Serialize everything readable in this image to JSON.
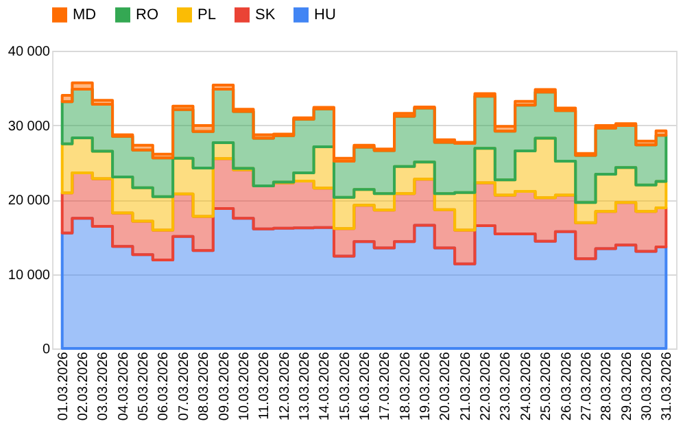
{
  "chart_data": {
    "type": "area",
    "stacked": true,
    "legend": "top",
    "grid": "y",
    "categories": [
      "01.03.2026",
      "02.03.2026",
      "03.03.2026",
      "04.03.2026",
      "05.03.2026",
      "06.03.2026",
      "07.03.2026",
      "08.03.2026",
      "09.03.2026",
      "10.03.2026",
      "11.03.2026",
      "12.03.2026",
      "13.03.2026",
      "14.03.2026",
      "15.03.2026",
      "16.03.2026",
      "17.03.2026",
      "18.03.2026",
      "19.03.2026",
      "20.03.2026",
      "21.03.2026",
      "22.03.2026",
      "23.03.2026",
      "24.03.2026",
      "25.03.2026",
      "26.03.2026",
      "27.03.2026",
      "28.03.2026",
      "29.03.2026",
      "30.03.2026",
      "31.03.2026"
    ],
    "ylim": [
      0,
      40000
    ],
    "yticks": [
      {
        "value": 0,
        "label": "0"
      },
      {
        "value": 10000,
        "label": "10 000"
      },
      {
        "value": 20000,
        "label": "20 000"
      },
      {
        "value": 30000,
        "label": "30 000"
      },
      {
        "value": 40000,
        "label": "40 000"
      }
    ],
    "series": [
      {
        "name": "HU",
        "color": "#4285f4",
        "values": [
          15500,
          17500,
          16400,
          13700,
          12600,
          11900,
          15050,
          13150,
          18800,
          17500,
          16050,
          16150,
          16200,
          16250,
          12400,
          14350,
          13500,
          14350,
          16550,
          13500,
          11350,
          16500,
          15400,
          15400,
          14400,
          15700,
          12050,
          13400,
          13900,
          13050,
          13650
        ]
      },
      {
        "name": "SK",
        "color": "#ea4335",
        "values": [
          5400,
          6100,
          6400,
          4500,
          4500,
          4000,
          5700,
          4600,
          6700,
          6500,
          5800,
          6100,
          6300,
          5300,
          3700,
          4900,
          5100,
          6450,
          6200,
          5150,
          4550,
          5750,
          5200,
          5700,
          5850,
          4900,
          4850,
          5000,
          5700,
          5350,
          5250
        ]
      },
      {
        "name": "PL",
        "color": "#fbbc04",
        "values": [
          6600,
          4700,
          3700,
          4850,
          4500,
          4500,
          4800,
          6500,
          2150,
          200,
          0,
          100,
          1100,
          5550,
          4200,
          2100,
          2200,
          3650,
          2300,
          2150,
          5050,
          4650,
          2050,
          5450,
          8000,
          4550,
          2700,
          5000,
          4700,
          3550,
          3550
        ]
      },
      {
        "name": "RO",
        "color": "#34a853",
        "values": [
          5650,
          6550,
          6300,
          5450,
          5050,
          5200,
          6550,
          4900,
          7200,
          7650,
          6400,
          6250,
          7200,
          5100,
          4850,
          5700,
          5800,
          6750,
          7250,
          6900,
          6600,
          7000,
          6550,
          6150,
          6200,
          6800,
          6350,
          6200,
          5650,
          5400,
          6200
        ]
      },
      {
        "name": "MD",
        "color": "#ff6d01",
        "values": [
          850,
          850,
          550,
          200,
          650,
          500,
          450,
          800,
          550,
          300,
          450,
          200,
          200,
          200,
          400,
          250,
          200,
          400,
          150,
          350,
          150,
          350,
          650,
          500,
          350,
          350,
          250,
          350,
          250,
          500,
          600
        ]
      }
    ]
  }
}
